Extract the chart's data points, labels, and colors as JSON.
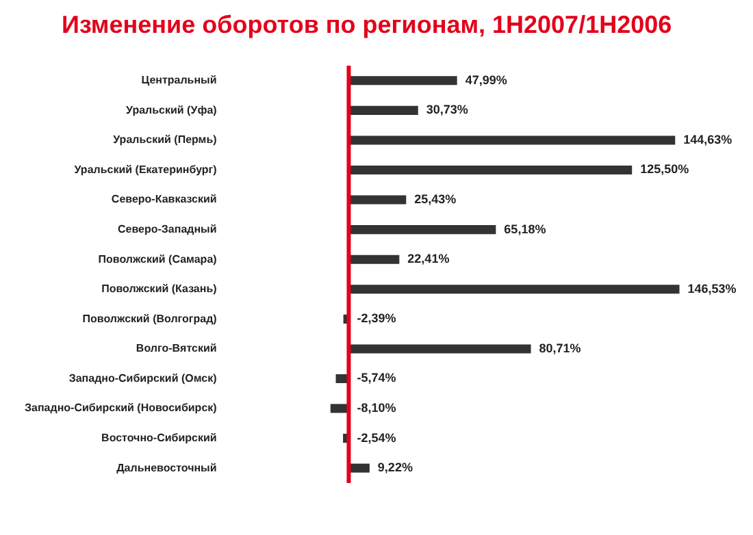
{
  "chart_data": {
    "type": "bar",
    "orientation": "horizontal",
    "title": "Изменение оборотов по регионам, 1H2007/1H2006",
    "categories": [
      "Центральный",
      "Уральский (Уфа)",
      "Уральский (Пермь)",
      "Уральский (Екатеринбург)",
      "Северо-Кавказский",
      "Северо-Западный",
      "Поволжский (Самара)",
      "Поволжский (Казань)",
      "Поволжский (Волгоград)",
      "Волго-Вятский",
      "Западно-Сибирский (Омск)",
      "Западно-Сибирский (Новосибирск)",
      "Восточно-Сибирский",
      "Дальневосточный"
    ],
    "values": [
      47.99,
      30.73,
      144.63,
      125.5,
      25.43,
      65.18,
      22.41,
      146.53,
      -2.39,
      80.71,
      -5.74,
      -8.1,
      -2.54,
      9.22
    ],
    "value_labels": [
      "47,99%",
      "30,73%",
      "144,63%",
      "125,50%",
      "25,43%",
      "65,18%",
      "22,41%",
      "146,53%",
      "-2,39%",
      "80,71%",
      "-5,74%",
      "-8,10%",
      "-2,54%",
      "9,22%"
    ],
    "color": "#333333",
    "tick_labels": "y",
    "ref_lines": [
      {
        "axis": "x",
        "value": 0,
        "color": "#e3001b"
      }
    ]
  }
}
